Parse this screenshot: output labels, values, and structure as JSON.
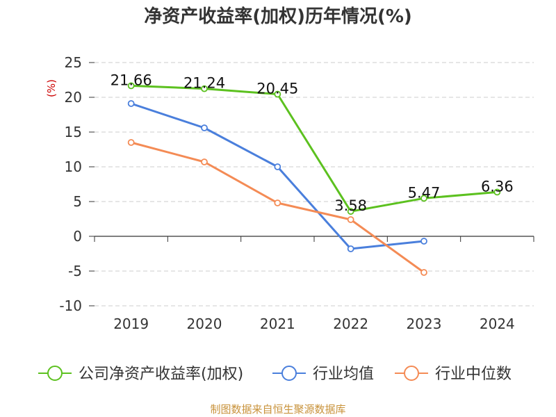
{
  "chart_data": {
    "type": "line",
    "title": "净资产收益率(加权)历年情况(%)",
    "unit_label": "(%)",
    "categories": [
      "2019",
      "2020",
      "2021",
      "2022",
      "2023",
      "2024"
    ],
    "ylim": [
      -10,
      25
    ],
    "yticks": [
      "25",
      "20",
      "15",
      "10",
      "5",
      "0",
      "-5",
      "-10"
    ],
    "grid": true,
    "legend_position": "bottom",
    "series": [
      {
        "name": "公司净资产收益率(加权)",
        "color": "#5cc11f",
        "values": [
          21.66,
          21.24,
          20.45,
          3.58,
          5.47,
          6.36
        ],
        "labels": [
          "21.66",
          "21.24",
          "20.45",
          "3.58",
          "5.47",
          "6.36"
        ]
      },
      {
        "name": "行业均值",
        "color": "#4a7fdc",
        "values": [
          19.1,
          15.6,
          10.0,
          -1.8,
          -0.7,
          null
        ]
      },
      {
        "name": "行业中位数",
        "color": "#f48b55",
        "values": [
          13.5,
          10.7,
          4.8,
          2.4,
          -5.2,
          null
        ]
      }
    ],
    "source": "制图数据来自恒生聚源数据库"
  }
}
